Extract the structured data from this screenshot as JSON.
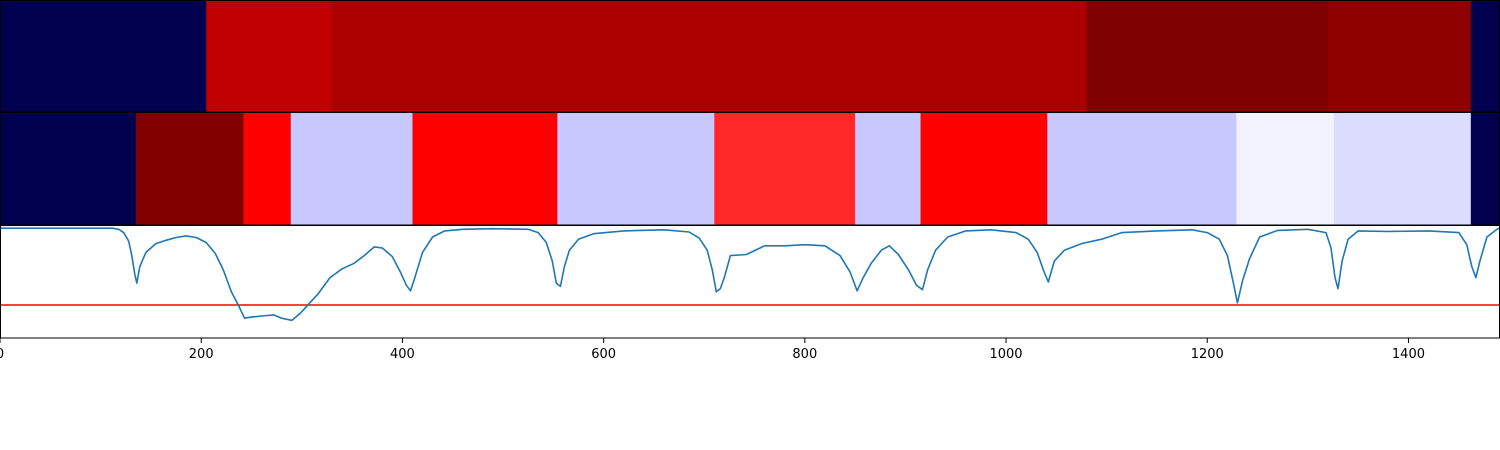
{
  "chart_data": {
    "type": "heatmap",
    "xlim": [
      0,
      1490
    ],
    "x_ticks": [
      "0",
      "200",
      "400",
      "600",
      "800",
      "1000",
      "1200",
      "1400"
    ],
    "x_tick_values": [
      0,
      200,
      400,
      600,
      800,
      1000,
      1200,
      1400
    ],
    "rows": [
      {
        "segments": [
          {
            "start": 0,
            "end": 205,
            "color": "#00004f"
          },
          {
            "start": 205,
            "end": 330,
            "color": "#c00000"
          },
          {
            "start": 330,
            "end": 1080,
            "color": "#aa0000"
          },
          {
            "start": 1080,
            "end": 1320,
            "color": "#7f0000"
          },
          {
            "start": 1320,
            "end": 1462,
            "color": "#8f0000"
          },
          {
            "start": 1462,
            "end": 1490,
            "color": "#00004f"
          }
        ]
      },
      {
        "segments": [
          {
            "start": 0,
            "end": 135,
            "color": "#00004f"
          },
          {
            "start": 135,
            "end": 242,
            "color": "#800000"
          },
          {
            "start": 242,
            "end": 289,
            "color": "#ff0000"
          },
          {
            "start": 289,
            "end": 410,
            "color": "#c8c8ff"
          },
          {
            "start": 410,
            "end": 554,
            "color": "#ff0000"
          },
          {
            "start": 554,
            "end": 710,
            "color": "#c8c8ff"
          },
          {
            "start": 710,
            "end": 850,
            "color": "#ff2828"
          },
          {
            "start": 850,
            "end": 915,
            "color": "#c8c8ff"
          },
          {
            "start": 915,
            "end": 1041,
            "color": "#ff0000"
          },
          {
            "start": 1041,
            "end": 1229,
            "color": "#c8c8ff"
          },
          {
            "start": 1229,
            "end": 1326,
            "color": "#f2f2ff"
          },
          {
            "start": 1326,
            "end": 1462,
            "color": "#dcdcff"
          },
          {
            "start": 1462,
            "end": 1490,
            "color": "#00004f"
          }
        ]
      }
    ],
    "line_panel": {
      "ylim": [
        -1.0,
        0.02
      ],
      "threshold": -0.7,
      "threshold_color": "#ff0000",
      "line_color": "#1f77b4",
      "series_points": [
        [
          0,
          0
        ],
        [
          112,
          0
        ],
        [
          118,
          -0.01
        ],
        [
          123,
          -0.04
        ],
        [
          128,
          -0.12
        ],
        [
          131,
          -0.25
        ],
        [
          134,
          -0.42
        ],
        [
          136,
          -0.5
        ],
        [
          139,
          -0.35
        ],
        [
          145,
          -0.22
        ],
        [
          155,
          -0.14
        ],
        [
          165,
          -0.11
        ],
        [
          175,
          -0.085
        ],
        [
          185,
          -0.07
        ],
        [
          195,
          -0.085
        ],
        [
          205,
          -0.13
        ],
        [
          214,
          -0.23
        ],
        [
          222,
          -0.38
        ],
        [
          230,
          -0.58
        ],
        [
          238,
          -0.72
        ],
        [
          243,
          -0.82
        ],
        [
          250,
          -0.81
        ],
        [
          260,
          -0.8
        ],
        [
          272,
          -0.79
        ],
        [
          280,
          -0.82
        ],
        [
          290,
          -0.84
        ],
        [
          298,
          -0.78
        ],
        [
          306,
          -0.7
        ],
        [
          316,
          -0.6
        ],
        [
          328,
          -0.45
        ],
        [
          340,
          -0.37
        ],
        [
          352,
          -0.32
        ],
        [
          362,
          -0.25
        ],
        [
          372,
          -0.17
        ],
        [
          380,
          -0.18
        ],
        [
          390,
          -0.26
        ],
        [
          398,
          -0.4
        ],
        [
          404,
          -0.52
        ],
        [
          408,
          -0.57
        ],
        [
          412,
          -0.46
        ],
        [
          420,
          -0.22
        ],
        [
          430,
          -0.08
        ],
        [
          442,
          -0.025
        ],
        [
          460,
          -0.01
        ],
        [
          490,
          -0.005
        ],
        [
          525,
          -0.01
        ],
        [
          535,
          -0.04
        ],
        [
          543,
          -0.13
        ],
        [
          549,
          -0.3
        ],
        [
          553,
          -0.5
        ],
        [
          557,
          -0.53
        ],
        [
          561,
          -0.35
        ],
        [
          566,
          -0.2
        ],
        [
          575,
          -0.1
        ],
        [
          590,
          -0.05
        ],
        [
          620,
          -0.025
        ],
        [
          660,
          -0.015
        ],
        [
          685,
          -0.035
        ],
        [
          695,
          -0.09
        ],
        [
          703,
          -0.2
        ],
        [
          708,
          -0.38
        ],
        [
          712,
          -0.58
        ],
        [
          716,
          -0.55
        ],
        [
          720,
          -0.45
        ],
        [
          726,
          -0.25
        ],
        [
          742,
          -0.24
        ],
        [
          760,
          -0.16
        ],
        [
          780,
          -0.16
        ],
        [
          800,
          -0.15
        ],
        [
          820,
          -0.16
        ],
        [
          835,
          -0.25
        ],
        [
          845,
          -0.4
        ],
        [
          852,
          -0.57
        ],
        [
          858,
          -0.45
        ],
        [
          866,
          -0.32
        ],
        [
          876,
          -0.2
        ],
        [
          884,
          -0.16
        ],
        [
          893,
          -0.24
        ],
        [
          903,
          -0.38
        ],
        [
          911,
          -0.52
        ],
        [
          917,
          -0.56
        ],
        [
          922,
          -0.38
        ],
        [
          930,
          -0.2
        ],
        [
          942,
          -0.08
        ],
        [
          960,
          -0.025
        ],
        [
          985,
          -0.015
        ],
        [
          1010,
          -0.04
        ],
        [
          1022,
          -0.1
        ],
        [
          1031,
          -0.22
        ],
        [
          1037,
          -0.38
        ],
        [
          1042,
          -0.49
        ],
        [
          1048,
          -0.3
        ],
        [
          1058,
          -0.2
        ],
        [
          1075,
          -0.14
        ],
        [
          1095,
          -0.1
        ],
        [
          1115,
          -0.04
        ],
        [
          1150,
          -0.025
        ],
        [
          1185,
          -0.015
        ],
        [
          1200,
          -0.04
        ],
        [
          1212,
          -0.1
        ],
        [
          1220,
          -0.25
        ],
        [
          1226,
          -0.5
        ],
        [
          1230,
          -0.68
        ],
        [
          1235,
          -0.48
        ],
        [
          1242,
          -0.28
        ],
        [
          1252,
          -0.08
        ],
        [
          1270,
          -0.02
        ],
        [
          1300,
          -0.01
        ],
        [
          1318,
          -0.04
        ],
        [
          1323,
          -0.18
        ],
        [
          1327,
          -0.45
        ],
        [
          1330,
          -0.55
        ],
        [
          1334,
          -0.3
        ],
        [
          1340,
          -0.1
        ],
        [
          1350,
          -0.025
        ],
        [
          1380,
          -0.03
        ],
        [
          1420,
          -0.025
        ],
        [
          1450,
          -0.04
        ],
        [
          1458,
          -0.15
        ],
        [
          1463,
          -0.35
        ],
        [
          1467,
          -0.45
        ],
        [
          1471,
          -0.3
        ],
        [
          1478,
          -0.08
        ],
        [
          1488,
          -0.01
        ],
        [
          1490,
          0
        ]
      ]
    }
  }
}
